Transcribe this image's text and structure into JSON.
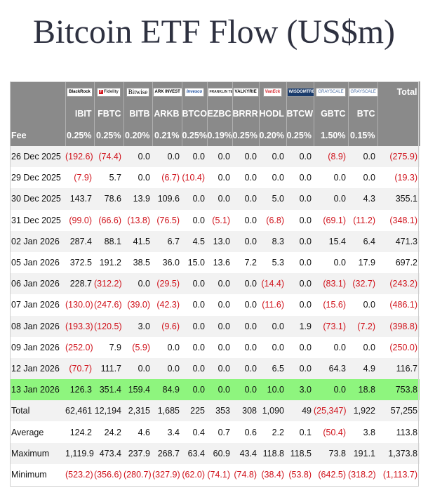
{
  "chart_data": {
    "type": "table",
    "title": "Bitcoin ETF Flow (US$m)",
    "logos": [
      "BlackRock",
      "Fidelity",
      "Bitwise",
      "ARK INVEST",
      "Invesco",
      "FRANKLIN TEMPLETON",
      "VALKYRIE",
      "VanEck",
      "WISDOMTREE",
      "GRAYSCALE",
      "GRAYSCALE"
    ],
    "fidelity_mark": "F",
    "total_label": "Total",
    "tickers": [
      "IBIT",
      "FBTC",
      "BITB",
      "ARKB",
      "BTCO",
      "EZBC",
      "BRRR",
      "HODL",
      "BTCW",
      "GBTC",
      "BTC"
    ],
    "fee_label": "Fee",
    "fees": [
      "0.25%",
      "0.25%",
      "0.20%",
      "0.21%",
      "0.25%",
      "0.19%",
      "0.25%",
      "0.20%",
      "0.25%",
      "1.50%",
      "0.15%"
    ],
    "rows": [
      {
        "date": "26 Dec 2025",
        "values": [
          "(192.6)",
          "(74.4)",
          "0.0",
          "0.0",
          "0.0",
          "0.0",
          "0.0",
          "0.0",
          "0.0",
          "(8.9)",
          "0.0"
        ],
        "total": "(275.9)"
      },
      {
        "date": "29 Dec 2025",
        "values": [
          "(7.9)",
          "5.7",
          "0.0",
          "(6.7)",
          "(10.4)",
          "0.0",
          "0.0",
          "0.0",
          "0.0",
          "0.0",
          "0.0"
        ],
        "total": "(19.3)"
      },
      {
        "date": "30 Dec 2025",
        "values": [
          "143.7",
          "78.6",
          "13.9",
          "109.6",
          "0.0",
          "0.0",
          "0.0",
          "5.0",
          "0.0",
          "0.0",
          "4.3"
        ],
        "total": "355.1"
      },
      {
        "date": "31 Dec 2025",
        "values": [
          "(99.0)",
          "(66.6)",
          "(13.8)",
          "(76.5)",
          "0.0",
          "(5.1)",
          "0.0",
          "(6.8)",
          "0.0",
          "(69.1)",
          "(11.2)"
        ],
        "total": "(348.1)"
      },
      {
        "date": "02 Jan 2026",
        "values": [
          "287.4",
          "88.1",
          "41.5",
          "6.7",
          "4.5",
          "13.0",
          "0.0",
          "8.3",
          "0.0",
          "15.4",
          "6.4"
        ],
        "total": "471.3"
      },
      {
        "date": "05 Jan 2026",
        "values": [
          "372.5",
          "191.2",
          "38.5",
          "36.0",
          "15.0",
          "13.6",
          "7.2",
          "5.3",
          "0.0",
          "0.0",
          "17.9"
        ],
        "total": "697.2"
      },
      {
        "date": "06 Jan 2026",
        "values": [
          "228.7",
          "(312.2)",
          "0.0",
          "(29.5)",
          "0.0",
          "0.0",
          "0.0",
          "(14.4)",
          "0.0",
          "(83.1)",
          "(32.7)"
        ],
        "total": "(243.2)"
      },
      {
        "date": "07 Jan 2026",
        "values": [
          "(130.0)",
          "(247.6)",
          "(39.0)",
          "(42.3)",
          "0.0",
          "0.0",
          "0.0",
          "(11.6)",
          "0.0",
          "(15.6)",
          "0.0"
        ],
        "total": "(486.1)"
      },
      {
        "date": "08 Jan 2026",
        "values": [
          "(193.3)",
          "(120.5)",
          "3.0",
          "(9.6)",
          "0.0",
          "0.0",
          "0.0",
          "0.0",
          "1.9",
          "(73.1)",
          "(7.2)"
        ],
        "total": "(398.8)"
      },
      {
        "date": "09 Jan 2026",
        "values": [
          "(252.0)",
          "7.9",
          "(5.9)",
          "0.0",
          "0.0",
          "0.0",
          "0.0",
          "0.0",
          "0.0",
          "0.0",
          "0.0"
        ],
        "total": "(250.0)"
      },
      {
        "date": "12 Jan 2026",
        "values": [
          "(70.7)",
          "111.7",
          "0.0",
          "0.0",
          "0.0",
          "0.0",
          "0.0",
          "6.5",
          "0.0",
          "64.3",
          "4.9"
        ],
        "total": "116.7"
      },
      {
        "date": "13 Jan 2026",
        "values": [
          "126.3",
          "351.4",
          "159.4",
          "84.9",
          "0.0",
          "0.0",
          "0.0",
          "10.0",
          "3.0",
          "0.0",
          "18.8"
        ],
        "total": "753.8",
        "highlight": true
      }
    ],
    "stats": [
      {
        "label": "Total",
        "values": [
          "62,461",
          "12,194",
          "2,315",
          "1,685",
          "225",
          "353",
          "308",
          "1,090",
          "49",
          "(25,347)",
          "1,922"
        ],
        "total": "57,255"
      },
      {
        "label": "Average",
        "values": [
          "124.2",
          "24.2",
          "4.6",
          "3.4",
          "0.4",
          "0.7",
          "0.6",
          "2.2",
          "0.1",
          "(50.4)",
          "3.8"
        ],
        "total": "113.8"
      },
      {
        "label": "Maximum",
        "values": [
          "1,119.9",
          "473.4",
          "237.9",
          "268.7",
          "63.4",
          "60.9",
          "43.4",
          "118.8",
          "118.5",
          "73.8",
          "191.1"
        ],
        "total": "1,373.8"
      },
      {
        "label": "Minimum",
        "values": [
          "(523.2)",
          "(356.6)",
          "(280.7)",
          "(327.9)",
          "(62.0)",
          "(74.1)",
          "(74.8)",
          "(38.4)",
          "(53.8)",
          "(642.5)",
          "(318.2)"
        ],
        "total": "(1,113.7)"
      }
    ],
    "colors": {
      "header_bg": "#8a8a8a",
      "negative": "#d0121b",
      "highlight": "#8ef57e",
      "stripe": "#f2f2f2",
      "title": "#2e3140"
    }
  }
}
